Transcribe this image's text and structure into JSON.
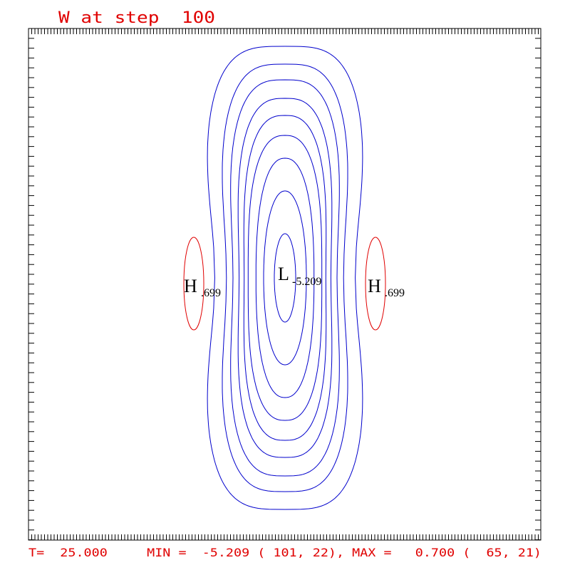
{
  "title": "W at step  100",
  "labels": [
    {
      "letter": "H",
      "value": ".699"
    },
    {
      "letter": "L",
      "value": "-5.209"
    },
    {
      "letter": "H",
      "value": ".699"
    }
  ],
  "footer": "T=  25.000     MIN =  -5.209 ( 101, 22), MAX =   0.700 (  65, 21)"
}
